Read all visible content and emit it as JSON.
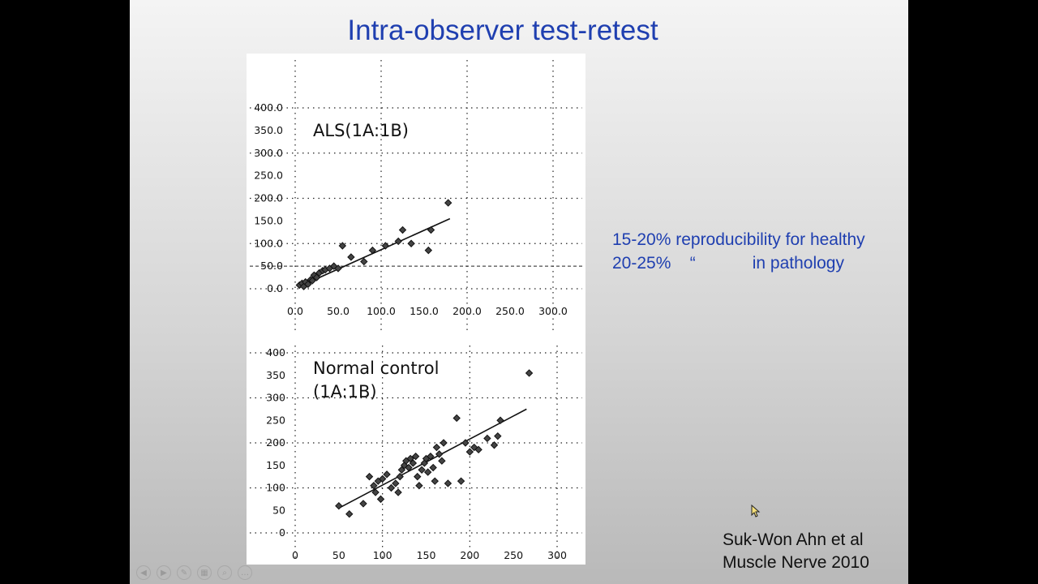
{
  "slide": {
    "title": "Intra-observer test-retest",
    "notes": [
      "15-20% reproducibility for healthy",
      "20-25%    “            in pathology"
    ],
    "citation": [
      "Suk-Won Ahn et al",
      "Muscle Nerve 2010"
    ]
  },
  "controls": [
    {
      "name": "previous-slide-icon",
      "glyph": "◀"
    },
    {
      "name": "next-slide-icon",
      "glyph": "▶"
    },
    {
      "name": "pen-icon",
      "glyph": "✎"
    },
    {
      "name": "slides-grid-icon",
      "glyph": "▦"
    },
    {
      "name": "zoom-icon",
      "glyph": "⌕"
    },
    {
      "name": "more-options-icon",
      "glyph": "…"
    }
  ],
  "chart_data": [
    {
      "type": "scatter",
      "annotation": "ALS(1A:1B)",
      "xlim": [
        0,
        300
      ],
      "ylim": [
        0,
        400
      ],
      "xticks": [
        "0.0",
        "50.0",
        "100.0",
        "150.0",
        "200.0",
        "250.0",
        "300.0"
      ],
      "yticks": [
        "0.0",
        "50.0",
        "100.0",
        "150.0",
        "200.0",
        "250.0",
        "300.0",
        "350.0",
        "400.0"
      ],
      "grid": true,
      "points": [
        [
          5,
          8
        ],
        [
          8,
          12
        ],
        [
          10,
          5
        ],
        [
          12,
          15
        ],
        [
          15,
          10
        ],
        [
          18,
          20
        ],
        [
          20,
          18
        ],
        [
          22,
          30
        ],
        [
          25,
          25
        ],
        [
          28,
          35
        ],
        [
          32,
          40
        ],
        [
          35,
          42
        ],
        [
          40,
          45
        ],
        [
          45,
          50
        ],
        [
          50,
          45
        ],
        [
          55,
          95
        ],
        [
          65,
          70
        ],
        [
          80,
          60
        ],
        [
          90,
          85
        ],
        [
          105,
          95
        ],
        [
          120,
          105
        ],
        [
          125,
          130
        ],
        [
          135,
          100
        ],
        [
          155,
          85
        ],
        [
          158,
          130
        ],
        [
          178,
          190
        ]
      ],
      "fit": [
        [
          5,
          5
        ],
        [
          180,
          155
        ]
      ]
    },
    {
      "type": "scatter",
      "annotation": [
        "Normal control",
        "(1A:1B)"
      ],
      "xlim": [
        0,
        300
      ],
      "ylim": [
        0,
        400
      ],
      "xticks": [
        "0",
        "50",
        "100",
        "150",
        "200",
        "250",
        "300"
      ],
      "yticks": [
        "0",
        "50",
        "100",
        "150",
        "200",
        "250",
        "300",
        "350",
        "400"
      ],
      "grid": true,
      "points": [
        [
          50,
          60
        ],
        [
          62,
          42
        ],
        [
          78,
          65
        ],
        [
          85,
          125
        ],
        [
          90,
          105
        ],
        [
          92,
          90
        ],
        [
          95,
          115
        ],
        [
          98,
          75
        ],
        [
          100,
          120
        ],
        [
          105,
          130
        ],
        [
          110,
          100
        ],
        [
          115,
          110
        ],
        [
          118,
          90
        ],
        [
          120,
          125
        ],
        [
          122,
          140
        ],
        [
          125,
          150
        ],
        [
          127,
          160
        ],
        [
          130,
          145
        ],
        [
          132,
          165
        ],
        [
          135,
          155
        ],
        [
          138,
          170
        ],
        [
          140,
          125
        ],
        [
          142,
          105
        ],
        [
          145,
          140
        ],
        [
          148,
          155
        ],
        [
          150,
          165
        ],
        [
          152,
          135
        ],
        [
          155,
          170
        ],
        [
          158,
          145
        ],
        [
          160,
          115
        ],
        [
          162,
          190
        ],
        [
          165,
          175
        ],
        [
          168,
          160
        ],
        [
          170,
          200
        ],
        [
          175,
          110
        ],
        [
          185,
          255
        ],
        [
          190,
          115
        ],
        [
          195,
          200
        ],
        [
          200,
          180
        ],
        [
          205,
          190
        ],
        [
          210,
          185
        ],
        [
          220,
          210
        ],
        [
          228,
          195
        ],
        [
          232,
          215
        ],
        [
          235,
          250
        ],
        [
          268,
          355
        ]
      ],
      "fit": [
        [
          50,
          55
        ],
        [
          265,
          275
        ]
      ]
    }
  ]
}
